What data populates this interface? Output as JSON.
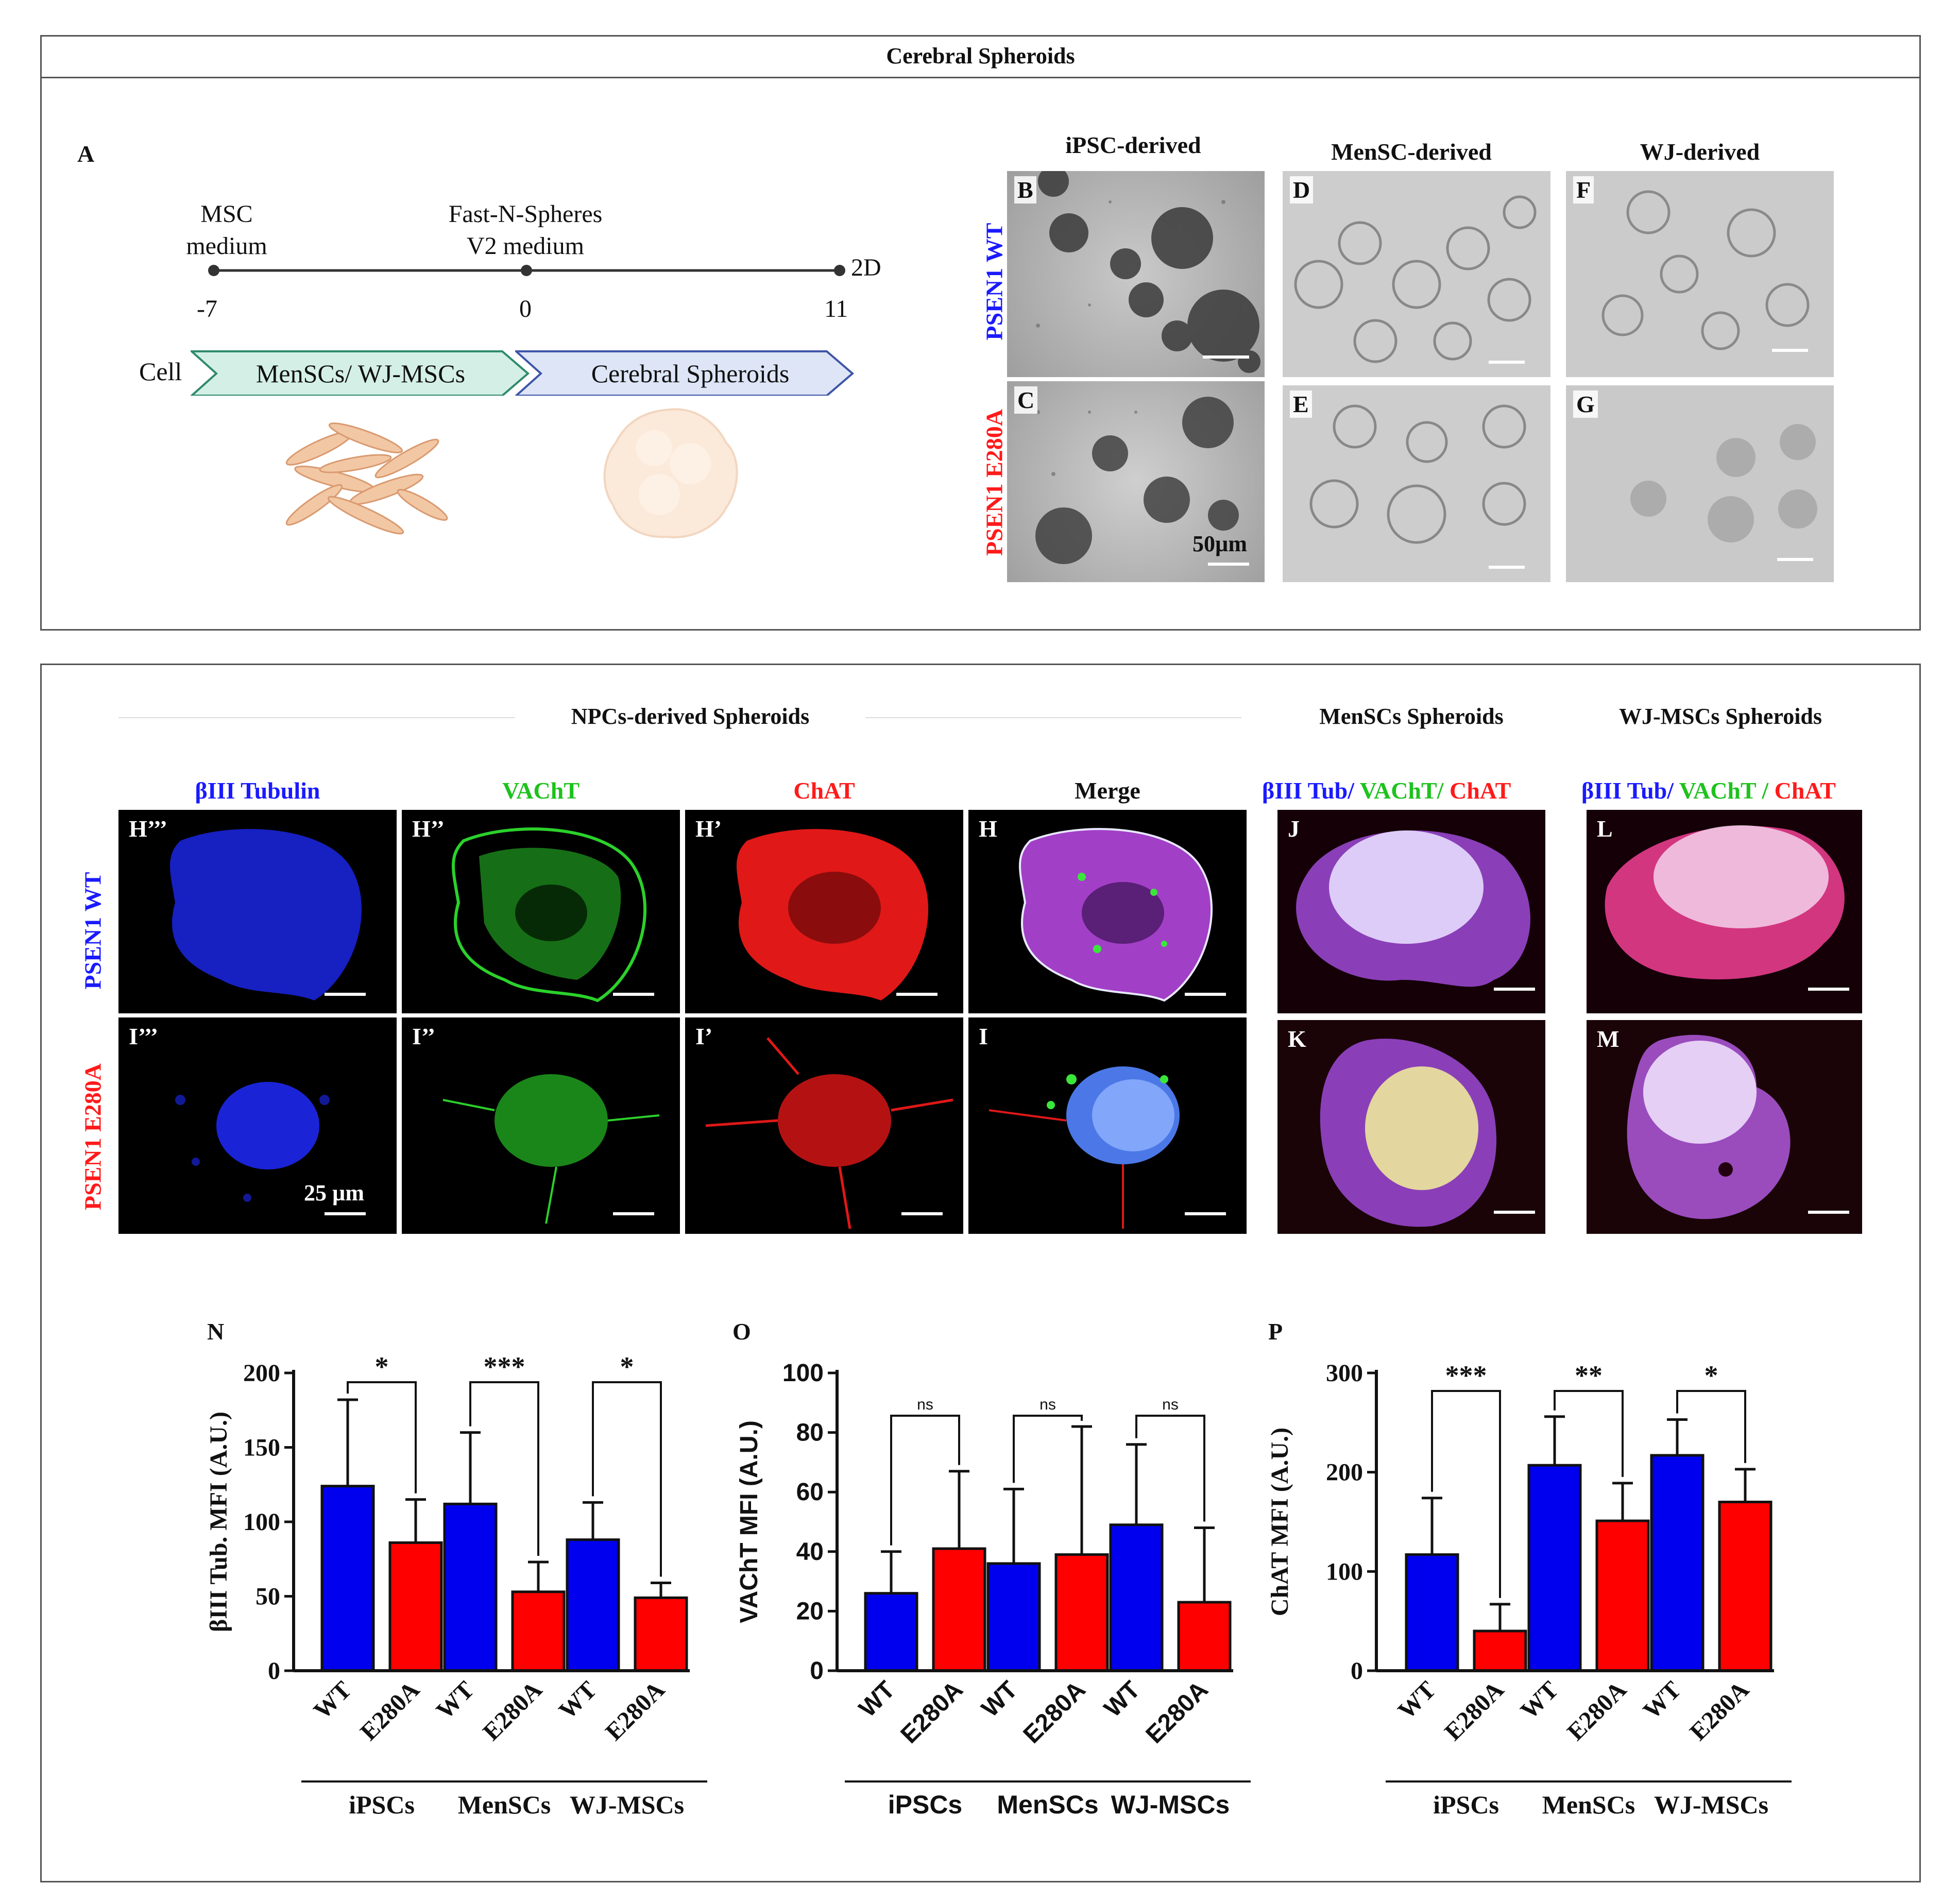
{
  "top_panel": {
    "title": "Cerebral Spheroids",
    "panel_a": {
      "letter": "A",
      "timeline": {
        "points": [
          {
            "label_line1": "MSC",
            "label_line2": "medium",
            "tick": "-7"
          },
          {
            "label_line1": "Fast-N-Spheres",
            "label_line2": "V2 medium",
            "tick": "0"
          },
          {
            "label_line1": "",
            "label_line2": "2D",
            "tick": "11"
          }
        ]
      },
      "cell_label": "Cell",
      "phase1": "MenSCs/ WJ-MSCs",
      "phase2": "Cerebral Spheroids"
    },
    "micrographs": {
      "columns": [
        "iPSC-derived",
        "MenSC-derived",
        "WJ-derived"
      ],
      "rows": [
        {
          "label": "PSEN1 WT",
          "color": "#1a1aff",
          "tiles": [
            "B",
            "D",
            "F"
          ]
        },
        {
          "label": "PSEN1 E280A",
          "color": "#ff1a1a",
          "tiles": [
            "C",
            "E",
            "G"
          ]
        }
      ],
      "scale_label": "50µm"
    }
  },
  "bottom_panel": {
    "npc_title": "NPCs-derived Spheroids",
    "mensc_title": "MenSCs Spheroids",
    "wj_title": "WJ-MSCs Spheroids",
    "channels": [
      {
        "label": "βIII Tubulin",
        "color": "#1a1aff"
      },
      {
        "label": "VAChT",
        "color": "#1ec21e"
      },
      {
        "label": "ChAT",
        "color": "#ff1a1a"
      },
      {
        "label": "Merge",
        "color": "#111111"
      }
    ],
    "merge_head_mensc": [
      {
        "text": "βIII Tub/ ",
        "color": "#1a1aff"
      },
      {
        "text": "VAChT/ ",
        "color": "#1ec21e"
      },
      {
        "text": "ChAT",
        "color": "#ff1a1a"
      }
    ],
    "merge_head_wj": [
      {
        "text": "βIII Tub/ ",
        "color": "#1a1aff"
      },
      {
        "text": "VAChT / ",
        "color": "#1ec21e"
      },
      {
        "text": "ChAT",
        "color": "#ff1a1a"
      }
    ],
    "rows": [
      {
        "label": "PSEN1 WT",
        "color": "#1a1aff",
        "tiles": [
          "H’’’",
          "H’’",
          "H’",
          "H",
          "J",
          "L"
        ]
      },
      {
        "label": "PSEN1 E280A",
        "color": "#ff1a1a",
        "tiles": [
          "I’’’",
          "I’’",
          "I’",
          "I",
          "K",
          "M"
        ]
      }
    ],
    "scale_label": "25 µm"
  },
  "chart_data": [
    {
      "type": "bar",
      "panel": "N",
      "ylabel": "βIII Tub. MFI (A.U.)",
      "ylim": [
        0,
        200
      ],
      "yticks": [
        0,
        50,
        100,
        150,
        200
      ],
      "groups": [
        "iPSCs",
        "MenSCs",
        "WJ-MSCs"
      ],
      "categories": [
        "WT",
        "E280A",
        "WT",
        "E280A",
        "WT",
        "E280A"
      ],
      "values": [
        124,
        86,
        112,
        53,
        88,
        49
      ],
      "errors": [
        58,
        29,
        48,
        20,
        25,
        10
      ],
      "colors": [
        "#0000ee",
        "#ff0000",
        "#0000ee",
        "#ff0000",
        "#0000ee",
        "#ff0000"
      ],
      "significance": [
        "*",
        "***",
        "*"
      ]
    },
    {
      "type": "bar",
      "panel": "O",
      "ylabel": "VAChT MFI (A.U.)",
      "ylim": [
        0,
        100
      ],
      "yticks": [
        0,
        20,
        40,
        60,
        80,
        100
      ],
      "groups": [
        "iPSCs",
        "MenSCs",
        "WJ-MSCs"
      ],
      "categories": [
        "WT",
        "E280A",
        "WT",
        "E280A",
        "WT",
        "E280A"
      ],
      "values": [
        26,
        41,
        36,
        39,
        49,
        23
      ],
      "errors": [
        14,
        26,
        25,
        43,
        27,
        25
      ],
      "colors": [
        "#0000ee",
        "#ff0000",
        "#0000ee",
        "#ff0000",
        "#0000ee",
        "#ff0000"
      ],
      "significance": [
        "ns",
        "ns",
        "ns"
      ]
    },
    {
      "type": "bar",
      "panel": "P",
      "ylabel": "ChAT MFI (A.U.)",
      "ylim": [
        0,
        300
      ],
      "yticks": [
        0,
        100,
        200,
        300
      ],
      "groups": [
        "iPSCs",
        "MenSCs",
        "WJ-MSCs"
      ],
      "categories": [
        "WT",
        "E280A",
        "WT",
        "E280A",
        "WT",
        "E280A"
      ],
      "values": [
        117,
        40,
        207,
        151,
        217,
        170
      ],
      "errors": [
        57,
        27,
        49,
        38,
        36,
        33
      ],
      "colors": [
        "#0000ee",
        "#ff0000",
        "#0000ee",
        "#ff0000",
        "#0000ee",
        "#ff0000"
      ],
      "significance": [
        "***",
        "**",
        "*"
      ]
    }
  ]
}
